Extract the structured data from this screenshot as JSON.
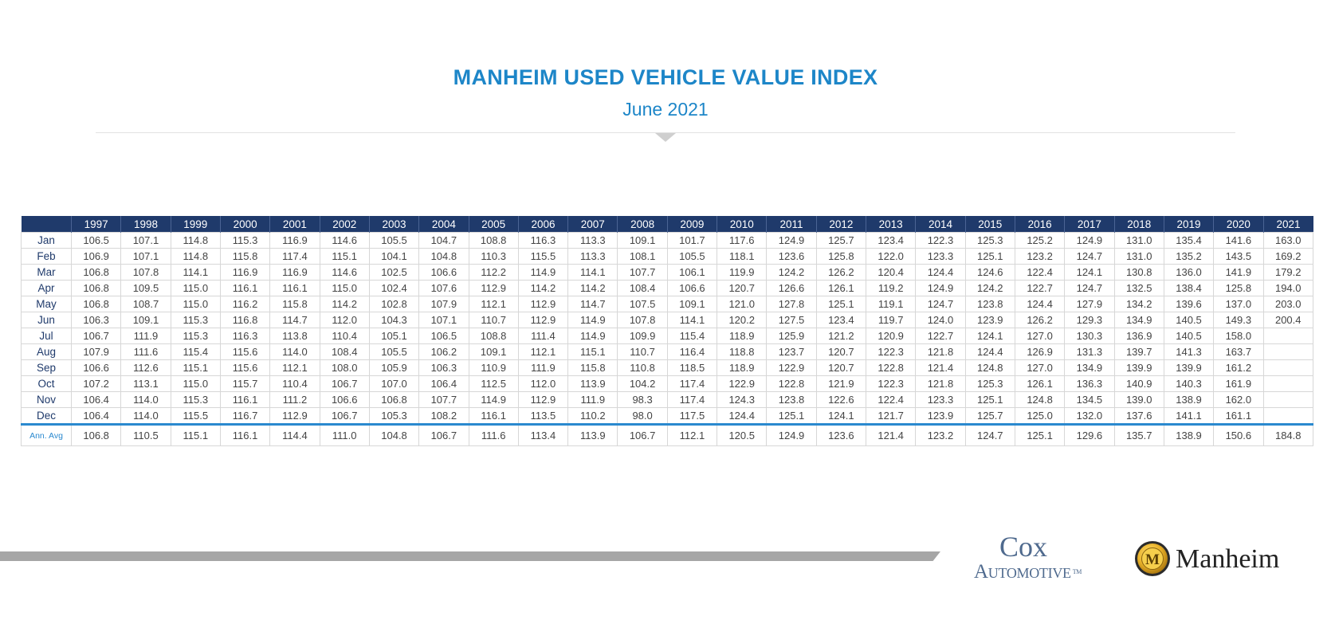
{
  "title": "MANHEIM USED VEHICLE VALUE INDEX",
  "subtitle": "June 2021",
  "footer": {
    "cox_top": "Cox",
    "cox_bottom": "Automotive",
    "cox_tm": "TM",
    "manheim": "Manheim",
    "manheim_emblem_letter": "M"
  },
  "colors": {
    "title": "#1d86c8",
    "header_bg": "#1f3a6b",
    "avg_rule": "#2a89cf",
    "footer_bar": "#a6a6a6"
  },
  "chart_data": {
    "type": "table",
    "title": "MANHEIM USED VEHICLE VALUE INDEX",
    "subtitle": "June 2021",
    "columns": [
      "1997",
      "1998",
      "1999",
      "2000",
      "2001",
      "2002",
      "2003",
      "2004",
      "2005",
      "2006",
      "2007",
      "2008",
      "2009",
      "2010",
      "2011",
      "2012",
      "2013",
      "2014",
      "2015",
      "2016",
      "2017",
      "2018",
      "2019",
      "2020",
      "2021"
    ],
    "rows": [
      {
        "label": "Jan",
        "values": [
          "106.5",
          "107.1",
          "114.8",
          "115.3",
          "116.9",
          "114.6",
          "105.5",
          "104.7",
          "108.8",
          "116.3",
          "113.3",
          "109.1",
          "101.7",
          "117.6",
          "124.9",
          "125.7",
          "123.4",
          "122.3",
          "125.3",
          "125.2",
          "124.9",
          "131.0",
          "135.4",
          "141.6",
          "163.0"
        ]
      },
      {
        "label": "Feb",
        "values": [
          "106.9",
          "107.1",
          "114.8",
          "115.8",
          "117.4",
          "115.1",
          "104.1",
          "104.8",
          "110.3",
          "115.5",
          "113.3",
          "108.1",
          "105.5",
          "118.1",
          "123.6",
          "125.8",
          "122.0",
          "123.3",
          "125.1",
          "123.2",
          "124.7",
          "131.0",
          "135.2",
          "143.5",
          "169.2"
        ]
      },
      {
        "label": "Mar",
        "values": [
          "106.8",
          "107.8",
          "114.1",
          "116.9",
          "116.9",
          "114.6",
          "102.5",
          "106.6",
          "112.2",
          "114.9",
          "114.1",
          "107.7",
          "106.1",
          "119.9",
          "124.2",
          "126.2",
          "120.4",
          "124.4",
          "124.6",
          "122.4",
          "124.1",
          "130.8",
          "136.0",
          "141.9",
          "179.2"
        ]
      },
      {
        "label": "Apr",
        "values": [
          "106.8",
          "109.5",
          "115.0",
          "116.1",
          "116.1",
          "115.0",
          "102.4",
          "107.6",
          "112.9",
          "114.2",
          "114.2",
          "108.4",
          "106.6",
          "120.7",
          "126.6",
          "126.1",
          "119.2",
          "124.9",
          "124.2",
          "122.7",
          "124.7",
          "132.5",
          "138.4",
          "125.8",
          "194.0"
        ]
      },
      {
        "label": "May",
        "values": [
          "106.8",
          "108.7",
          "115.0",
          "116.2",
          "115.8",
          "114.2",
          "102.8",
          "107.9",
          "112.1",
          "112.9",
          "114.7",
          "107.5",
          "109.1",
          "121.0",
          "127.8",
          "125.1",
          "119.1",
          "124.7",
          "123.8",
          "124.4",
          "127.9",
          "134.2",
          "139.6",
          "137.0",
          "203.0"
        ]
      },
      {
        "label": "Jun",
        "values": [
          "106.3",
          "109.1",
          "115.3",
          "116.8",
          "114.7",
          "112.0",
          "104.3",
          "107.1",
          "110.7",
          "112.9",
          "114.9",
          "107.8",
          "114.1",
          "120.2",
          "127.5",
          "123.4",
          "119.7",
          "124.0",
          "123.9",
          "126.2",
          "129.3",
          "134.9",
          "140.5",
          "149.3",
          "200.4"
        ]
      },
      {
        "label": "Jul",
        "values": [
          "106.7",
          "111.9",
          "115.3",
          "116.3",
          "113.8",
          "110.4",
          "105.1",
          "106.5",
          "108.8",
          "111.4",
          "114.9",
          "109.9",
          "115.4",
          "118.9",
          "125.9",
          "121.2",
          "120.9",
          "122.7",
          "124.1",
          "127.0",
          "130.3",
          "136.9",
          "140.5",
          "158.0",
          ""
        ]
      },
      {
        "label": "Aug",
        "values": [
          "107.9",
          "111.6",
          "115.4",
          "115.6",
          "114.0",
          "108.4",
          "105.5",
          "106.2",
          "109.1",
          "112.1",
          "115.1",
          "110.7",
          "116.4",
          "118.8",
          "123.7",
          "120.7",
          "122.3",
          "121.8",
          "124.4",
          "126.9",
          "131.3",
          "139.7",
          "141.3",
          "163.7",
          ""
        ]
      },
      {
        "label": "Sep",
        "values": [
          "106.6",
          "112.6",
          "115.1",
          "115.6",
          "112.1",
          "108.0",
          "105.9",
          "106.3",
          "110.9",
          "111.9",
          "115.8",
          "110.8",
          "118.5",
          "118.9",
          "122.9",
          "120.7",
          "122.8",
          "121.4",
          "124.8",
          "127.0",
          "134.9",
          "139.9",
          "139.9",
          "161.2",
          ""
        ]
      },
      {
        "label": "Oct",
        "values": [
          "107.2",
          "113.1",
          "115.0",
          "115.7",
          "110.4",
          "106.7",
          "107.0",
          "106.4",
          "112.5",
          "112.0",
          "113.9",
          "104.2",
          "117.4",
          "122.9",
          "122.8",
          "121.9",
          "122.3",
          "121.8",
          "125.3",
          "126.1",
          "136.3",
          "140.9",
          "140.3",
          "161.9",
          ""
        ]
      },
      {
        "label": "Nov",
        "values": [
          "106.4",
          "114.0",
          "115.3",
          "116.1",
          "111.2",
          "106.6",
          "106.8",
          "107.7",
          "114.9",
          "112.9",
          "111.9",
          "98.3",
          "117.4",
          "124.3",
          "123.8",
          "122.6",
          "122.4",
          "123.3",
          "125.1",
          "124.8",
          "134.5",
          "139.0",
          "138.9",
          "162.0",
          ""
        ]
      },
      {
        "label": "Dec",
        "values": [
          "106.4",
          "114.0",
          "115.5",
          "116.7",
          "112.9",
          "106.7",
          "105.3",
          "108.2",
          "116.1",
          "113.5",
          "110.2",
          "98.0",
          "117.5",
          "124.4",
          "125.1",
          "124.1",
          "121.7",
          "123.9",
          "125.7",
          "125.0",
          "132.0",
          "137.6",
          "141.1",
          "161.1",
          ""
        ]
      }
    ],
    "average": {
      "label": "Ann. Avg",
      "values": [
        "106.8",
        "110.5",
        "115.1",
        "116.1",
        "114.4",
        "111.0",
        "104.8",
        "106.7",
        "111.6",
        "113.4",
        "113.9",
        "106.7",
        "112.1",
        "120.5",
        "124.9",
        "123.6",
        "121.4",
        "123.2",
        "124.7",
        "125.1",
        "129.6",
        "135.7",
        "138.9",
        "150.6",
        "184.8"
      ]
    }
  }
}
